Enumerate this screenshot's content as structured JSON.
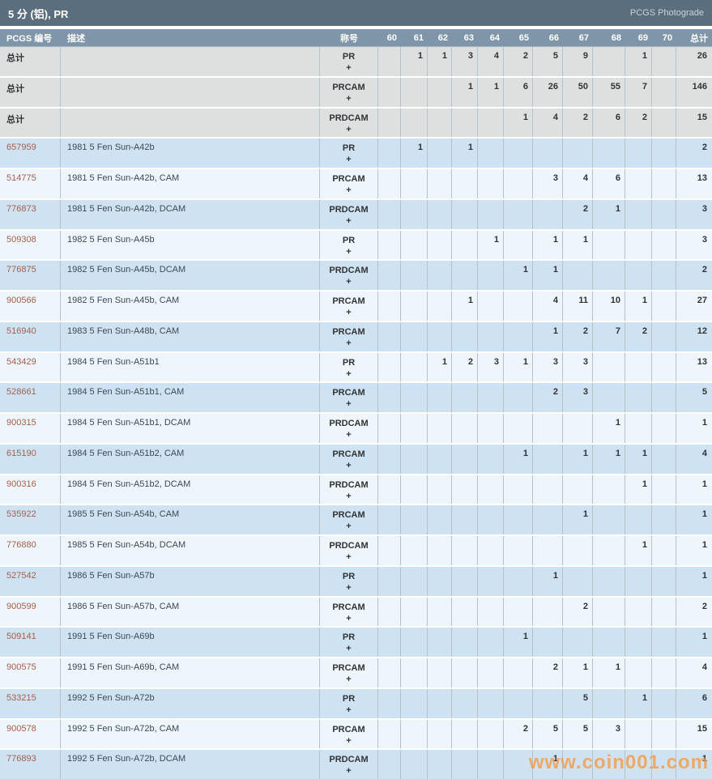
{
  "title_bar": {
    "title": "5 分 (铝), PR",
    "right_label": "PCGS Photograde"
  },
  "table": {
    "columns": [
      "PCGS 编号",
      "描述",
      "称号",
      "60",
      "61",
      "62",
      "63",
      "64",
      "65",
      "66",
      "67",
      "68",
      "69",
      "70",
      "总计"
    ],
    "plus": "+",
    "rows": [
      {
        "pcgs": "总计",
        "desc": "",
        "designation": "PR",
        "grades": [
          "",
          "1",
          "1",
          "3",
          "4",
          "2",
          "5",
          "9",
          "",
          "1",
          ""
        ],
        "total": "26"
      },
      {
        "pcgs": "总计",
        "desc": "",
        "designation": "PRCAM",
        "grades": [
          "",
          "",
          "",
          "1",
          "1",
          "6",
          "26",
          "50",
          "55",
          "7",
          ""
        ],
        "total": "146"
      },
      {
        "pcgs": "总计",
        "desc": "",
        "designation": "PRDCAM",
        "grades": [
          "",
          "",
          "",
          "",
          "",
          "1",
          "4",
          "2",
          "6",
          "2",
          ""
        ],
        "total": "15"
      },
      {
        "pcgs": "657959",
        "desc": "1981 5 Fen Sun-A42b",
        "designation": "PR",
        "grades": [
          "",
          "1",
          "",
          "1",
          "",
          "",
          "",
          "",
          "",
          "",
          ""
        ],
        "total": "2"
      },
      {
        "pcgs": "514775",
        "desc": "1981 5 Fen Sun-A42b, CAM",
        "designation": "PRCAM",
        "grades": [
          "",
          "",
          "",
          "",
          "",
          "",
          "3",
          "4",
          "6",
          "",
          ""
        ],
        "total": "13"
      },
      {
        "pcgs": "776873",
        "desc": "1981 5 Fen Sun-A42b, DCAM",
        "designation": "PRDCAM",
        "grades": [
          "",
          "",
          "",
          "",
          "",
          "",
          "",
          "2",
          "1",
          "",
          ""
        ],
        "total": "3"
      },
      {
        "pcgs": "509308",
        "desc": "1982 5 Fen Sun-A45b",
        "designation": "PR",
        "grades": [
          "",
          "",
          "",
          "",
          "1",
          "",
          "1",
          "1",
          "",
          "",
          ""
        ],
        "total": "3"
      },
      {
        "pcgs": "776875",
        "desc": "1982 5 Fen Sun-A45b, DCAM",
        "designation": "PRDCAM",
        "grades": [
          "",
          "",
          "",
          "",
          "",
          "1",
          "1",
          "",
          "",
          "",
          ""
        ],
        "total": "2"
      },
      {
        "pcgs": "900566",
        "desc": "1982 5 Fen Sun-A45b, CAM",
        "designation": "PRCAM",
        "grades": [
          "",
          "",
          "",
          "1",
          "",
          "",
          "4",
          "11",
          "10",
          "1",
          ""
        ],
        "total": "27"
      },
      {
        "pcgs": "516940",
        "desc": "1983 5 Fen Sun-A48b, CAM",
        "designation": "PRCAM",
        "grades": [
          "",
          "",
          "",
          "",
          "",
          "",
          "1",
          "2",
          "7",
          "2",
          ""
        ],
        "total": "12"
      },
      {
        "pcgs": "543429",
        "desc": "1984 5 Fen Sun-A51b1",
        "designation": "PR",
        "grades": [
          "",
          "",
          "1",
          "2",
          "3",
          "1",
          "3",
          "3",
          "",
          "",
          ""
        ],
        "total": "13"
      },
      {
        "pcgs": "528661",
        "desc": "1984 5 Fen Sun-A51b1, CAM",
        "designation": "PRCAM",
        "grades": [
          "",
          "",
          "",
          "",
          "",
          "",
          "2",
          "3",
          "",
          "",
          ""
        ],
        "total": "5"
      },
      {
        "pcgs": "900315",
        "desc": "1984 5 Fen Sun-A51b1, DCAM",
        "designation": "PRDCAM",
        "grades": [
          "",
          "",
          "",
          "",
          "",
          "",
          "",
          "",
          "1",
          "",
          ""
        ],
        "total": "1"
      },
      {
        "pcgs": "615190",
        "desc": "1984 5 Fen Sun-A51b2, CAM",
        "designation": "PRCAM",
        "grades": [
          "",
          "",
          "",
          "",
          "",
          "1",
          "",
          "1",
          "1",
          "1",
          ""
        ],
        "total": "4"
      },
      {
        "pcgs": "900316",
        "desc": "1984 5 Fen Sun-A51b2, DCAM",
        "designation": "PRDCAM",
        "grades": [
          "",
          "",
          "",
          "",
          "",
          "",
          "",
          "",
          "",
          "1",
          ""
        ],
        "total": "1"
      },
      {
        "pcgs": "535922",
        "desc": "1985 5 Fen Sun-A54b, CAM",
        "designation": "PRCAM",
        "grades": [
          "",
          "",
          "",
          "",
          "",
          "",
          "",
          "1",
          "",
          "",
          ""
        ],
        "total": "1"
      },
      {
        "pcgs": "776880",
        "desc": "1985 5 Fen Sun-A54b, DCAM",
        "designation": "PRDCAM",
        "grades": [
          "",
          "",
          "",
          "",
          "",
          "",
          "",
          "",
          "",
          "1",
          ""
        ],
        "total": "1"
      },
      {
        "pcgs": "527542",
        "desc": "1986 5 Fen Sun-A57b",
        "designation": "PR",
        "grades": [
          "",
          "",
          "",
          "",
          "",
          "",
          "1",
          "",
          "",
          "",
          ""
        ],
        "total": "1"
      },
      {
        "pcgs": "900599",
        "desc": "1986 5 Fen Sun-A57b, CAM",
        "designation": "PRCAM",
        "grades": [
          "",
          "",
          "",
          "",
          "",
          "",
          "",
          "2",
          "",
          "",
          ""
        ],
        "total": "2"
      },
      {
        "pcgs": "509141",
        "desc": "1991 5 Fen Sun-A69b",
        "designation": "PR",
        "grades": [
          "",
          "",
          "",
          "",
          "",
          "1",
          "",
          "",
          "",
          "",
          ""
        ],
        "total": "1"
      },
      {
        "pcgs": "900575",
        "desc": "1991 5 Fen Sun-A69b, CAM",
        "designation": "PRCAM",
        "grades": [
          "",
          "",
          "",
          "",
          "",
          "",
          "2",
          "1",
          "1",
          "",
          ""
        ],
        "total": "4"
      },
      {
        "pcgs": "533215",
        "desc": "1992 5 Fen Sun-A72b",
        "designation": "PR",
        "grades": [
          "",
          "",
          "",
          "",
          "",
          "",
          "",
          "5",
          "",
          "1",
          ""
        ],
        "total": "6"
      },
      {
        "pcgs": "900578",
        "desc": "1992 5 Fen Sun-A72b, CAM",
        "designation": "PRCAM",
        "grades": [
          "",
          "",
          "",
          "",
          "",
          "2",
          "5",
          "5",
          "3",
          "",
          ""
        ],
        "total": "15"
      },
      {
        "pcgs": "776893",
        "desc": "1992 5 Fen Sun-A72b, DCAM",
        "designation": "PRDCAM",
        "grades": [
          "",
          "",
          "",
          "",
          "",
          "",
          "1",
          "",
          "",
          "",
          ""
        ],
        "total": "1"
      }
    ]
  },
  "watermark": "www.coin001.com",
  "colors": {
    "title_bar_bg": "#5b6e7d",
    "header_bg": "#7f96aa",
    "summary_row_bg": "#dee0e0",
    "blue_row_bg": "#cfe2f1",
    "light_row_bg": "#eef5fb",
    "pcgs_number_color": "#a5604b",
    "watermark_color": "#f39a45"
  }
}
